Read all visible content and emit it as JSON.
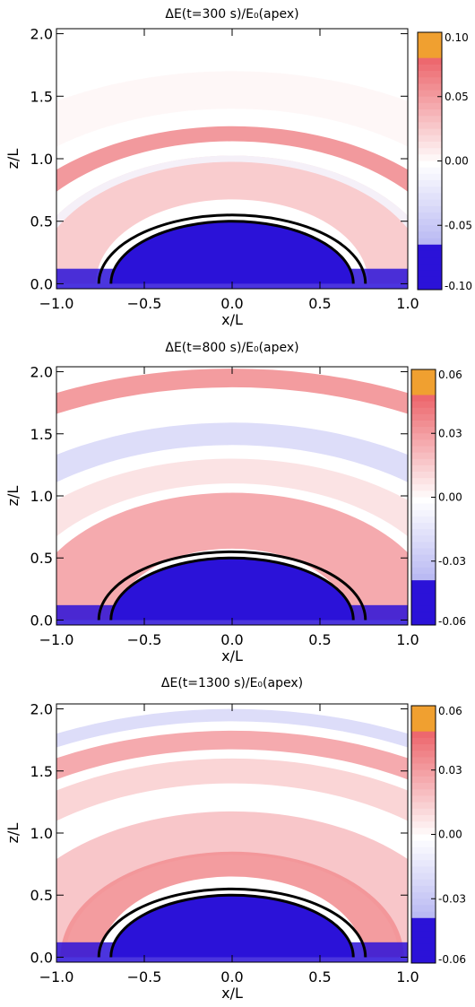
{
  "chart_data": [
    {
      "type": "heatmap",
      "title": "ΔE(t=300 s)/E₀(apex)",
      "xlabel": "x/L",
      "ylabel": "z/L",
      "xlim": [
        -1.0,
        1.0
      ],
      "ylim": [
        -0.04,
        2.04
      ],
      "x_ticks": [
        "−1.0",
        "−0.5",
        "0.0",
        "0.5",
        "1.0"
      ],
      "x_tick_values": [
        -1.0,
        -0.5,
        0.0,
        0.5,
        1.0
      ],
      "y_ticks": [
        "0.0",
        "0.5",
        "1.0",
        "1.5",
        "2.0"
      ],
      "y_tick_values": [
        0.0,
        0.5,
        1.0,
        1.5,
        2.0
      ],
      "colorbar": {
        "ticks": [
          "0.10",
          "0.05",
          "0.00",
          "-0.05",
          "-0.10"
        ],
        "tick_values": [
          0.1,
          0.05,
          0.0,
          -0.05,
          -0.1
        ],
        "range": [
          -0.1,
          0.1
        ]
      },
      "loop_radii": [
        0.5,
        0.55
      ],
      "bands": [
        {
          "z": 1.2,
          "width": 0.12,
          "value": 0.06
        },
        {
          "z": 0.85,
          "width": 0.35,
          "value": 0.03
        },
        {
          "z": 1.0,
          "width": 0.05,
          "value": -0.01
        },
        {
          "z": 1.55,
          "width": 0.3,
          "value": 0.005
        }
      ],
      "colors": {
        "positive": "#e8424a",
        "negative": "#2b12d8",
        "zero": "#ffffff",
        "top": "#f0a030"
      }
    },
    {
      "type": "heatmap",
      "title": "ΔE(t=800 s)/E₀(apex)",
      "xlabel": "x/L",
      "ylabel": "z/L",
      "xlim": [
        -1.0,
        1.0
      ],
      "ylim": [
        -0.04,
        2.04
      ],
      "x_ticks": [
        "−1.0",
        "−0.5",
        "0.0",
        "0.5",
        "1.0"
      ],
      "x_tick_values": [
        -1.0,
        -0.5,
        0.0,
        0.5,
        1.0
      ],
      "y_ticks": [
        "0.0",
        "0.5",
        "1.0",
        "1.5",
        "2.0"
      ],
      "y_tick_values": [
        0.0,
        0.5,
        1.0,
        1.5,
        2.0
      ],
      "colorbar": {
        "ticks": [
          "0.06",
          "0.03",
          "0.00",
          "-0.03",
          "-0.06"
        ],
        "tick_values": [
          0.06,
          0.03,
          0.0,
          -0.03,
          -0.06
        ],
        "range": [
          -0.06,
          0.06
        ]
      },
      "loop_radii": [
        0.5,
        0.55
      ],
      "bands": [
        {
          "z": 1.95,
          "width": 0.15,
          "value": 0.035
        },
        {
          "z": 1.5,
          "width": 0.18,
          "value": -0.02
        },
        {
          "z": 1.2,
          "width": 0.2,
          "value": 0.01
        },
        {
          "z": 0.8,
          "width": 0.45,
          "value": 0.03
        }
      ],
      "colors": {
        "positive": "#e8424a",
        "negative": "#2b12d8",
        "zero": "#ffffff",
        "top": "#f0a030"
      }
    },
    {
      "type": "heatmap",
      "title": "ΔE(t=1300 s)/E₀(apex)",
      "xlabel": "x/L",
      "ylabel": "z/L",
      "xlim": [
        -1.0,
        1.0
      ],
      "ylim": [
        -0.04,
        2.04
      ],
      "x_ticks": [
        "−1.0",
        "−0.5",
        "0.0",
        "0.5",
        "1.0"
      ],
      "x_tick_values": [
        -1.0,
        -0.5,
        0.0,
        0.5,
        1.0
      ],
      "y_ticks": [
        "0.0",
        "0.5",
        "1.0",
        "1.5",
        "2.0"
      ],
      "y_tick_values": [
        0.0,
        0.5,
        1.0,
        1.5,
        2.0
      ],
      "colorbar": {
        "ticks": [
          "0.06",
          "0.03",
          "0.00",
          "-0.03",
          "-0.06"
        ],
        "tick_values": [
          0.06,
          0.03,
          0.0,
          -0.03,
          -0.06
        ],
        "range": [
          -0.06,
          0.06
        ]
      },
      "loop_radii": [
        0.5,
        0.55
      ],
      "bands": [
        {
          "z": 1.95,
          "width": 0.1,
          "value": -0.02
        },
        {
          "z": 1.75,
          "width": 0.15,
          "value": 0.03
        },
        {
          "z": 1.5,
          "width": 0.2,
          "value": 0.015
        },
        {
          "z": 1.0,
          "width": 0.35,
          "value": 0.02
        },
        {
          "z": 0.75,
          "width": 0.2,
          "value": 0.035
        }
      ],
      "colors": {
        "positive": "#e8424a",
        "negative": "#2b12d8",
        "zero": "#ffffff",
        "top": "#f0a030"
      }
    }
  ]
}
